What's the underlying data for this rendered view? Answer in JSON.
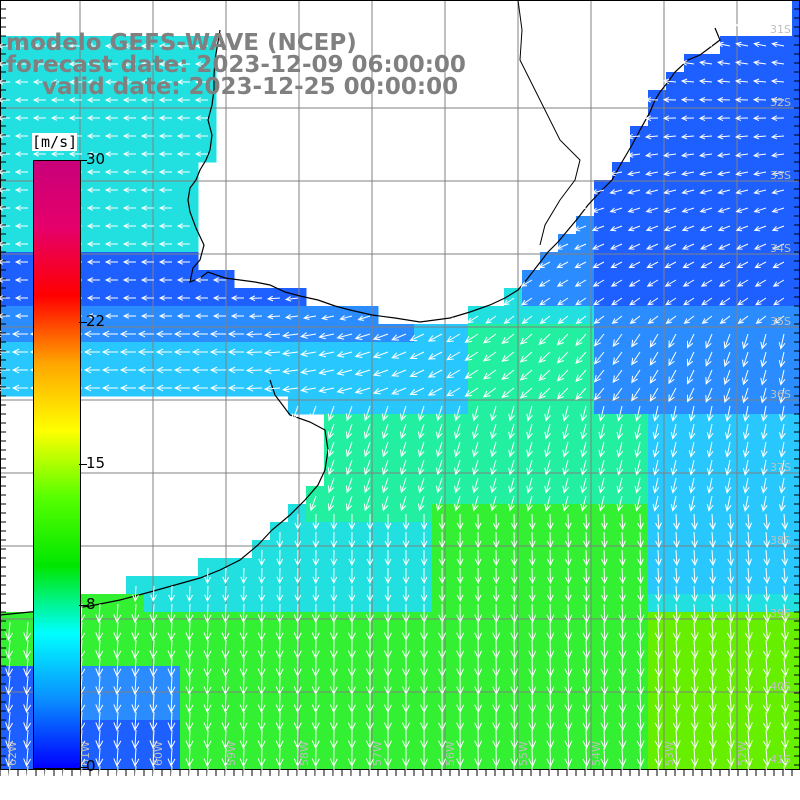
{
  "header": {
    "model_line": "modelo GEFS-WAVE (NCEP)",
    "forecast_line": "forecast date: 2023-12-09 06:00:00",
    "valid_line": "valid date: 2023-12-25 00:00:00"
  },
  "colorbar": {
    "unit": "[m/s]",
    "ticks": [
      {
        "label": "30",
        "value": 30
      },
      {
        "label": "22",
        "value": 22
      },
      {
        "label": "15",
        "value": 15
      },
      {
        "label": "8",
        "value": 8
      },
      {
        "label": "0",
        "value": 0
      }
    ],
    "colors": [
      "#0000ff",
      "#0a8cff",
      "#00ffff",
      "#00e600",
      "#55ff00",
      "#ffff00",
      "#ffa500",
      "#ff0000",
      "#e6006a",
      "#c8007a"
    ]
  },
  "map": {
    "right_lat_labels": [
      "31S",
      "32S",
      "33S",
      "34S",
      "35S",
      "36S",
      "37S",
      "38S",
      "39S",
      "40S",
      "41S"
    ],
    "bottom_lon_labels": [
      "62W",
      "61W",
      "60W",
      "59W",
      "58W",
      "57W",
      "56W",
      "55W",
      "54W",
      "53W",
      "52W"
    ],
    "field_colors": {
      "deep_blue": "#1e5fff",
      "blue": "#2a8cff",
      "cyan": "#28c8ff",
      "aqua": "#22e0e0",
      "green_cyan": "#22f0a0",
      "green": "#33f033",
      "yellow_green": "#66f000",
      "land": "#ffffff",
      "grid": "#808080",
      "arrows": "#ffffff"
    }
  }
}
